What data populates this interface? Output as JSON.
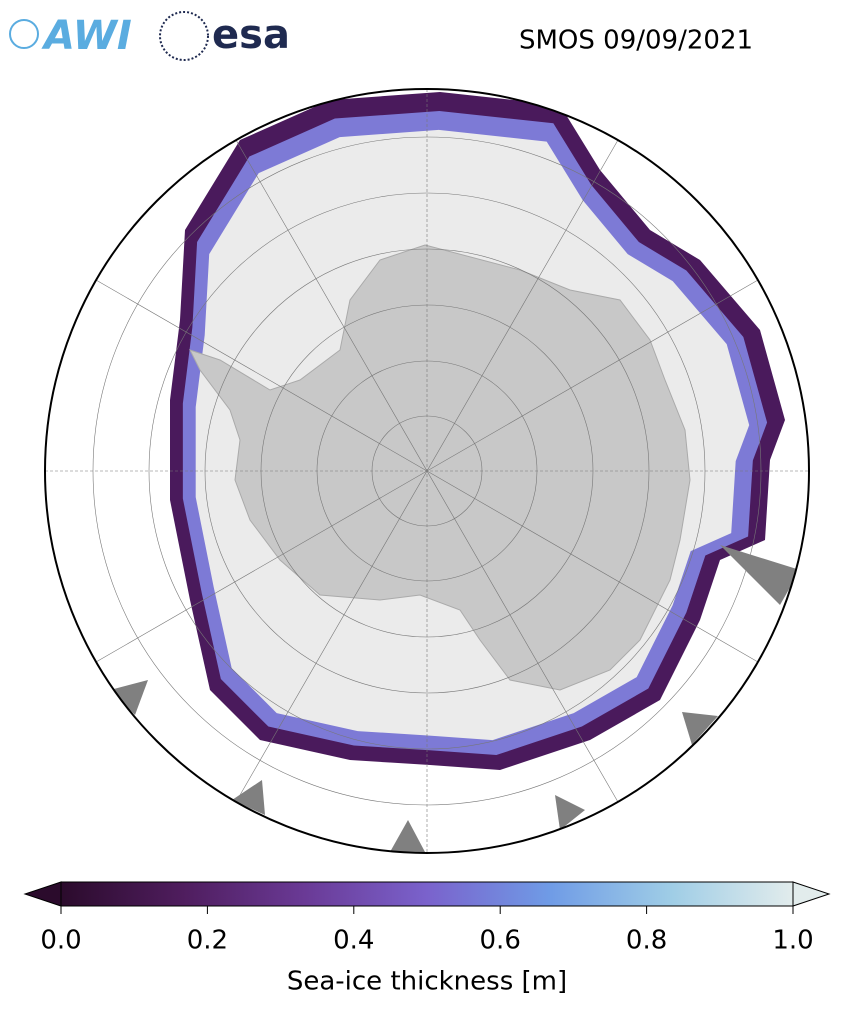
{
  "header": {
    "logos": [
      "AWI",
      "esa"
    ],
    "title": "SMOS 09/09/2021"
  },
  "colorbar": {
    "label": "Sea-ice thickness [m]",
    "lim": [
      0,
      1
    ],
    "ticks": [
      {
        "value": 0,
        "label": "0.0"
      },
      {
        "value": 0.2,
        "label": "0.2"
      },
      {
        "value": 0.4,
        "label": "0.4"
      },
      {
        "value": 0.6,
        "label": "0.6"
      },
      {
        "value": 0.8,
        "label": "0.8"
      },
      {
        "value": 1,
        "label": "1.0"
      }
    ],
    "colors": [
      "#2b0b2c",
      "#4f1d5e",
      "#6a3a96",
      "#7a62cc",
      "#6f9be6",
      "#9fcde6",
      "#e2ecec"
    ]
  }
}
